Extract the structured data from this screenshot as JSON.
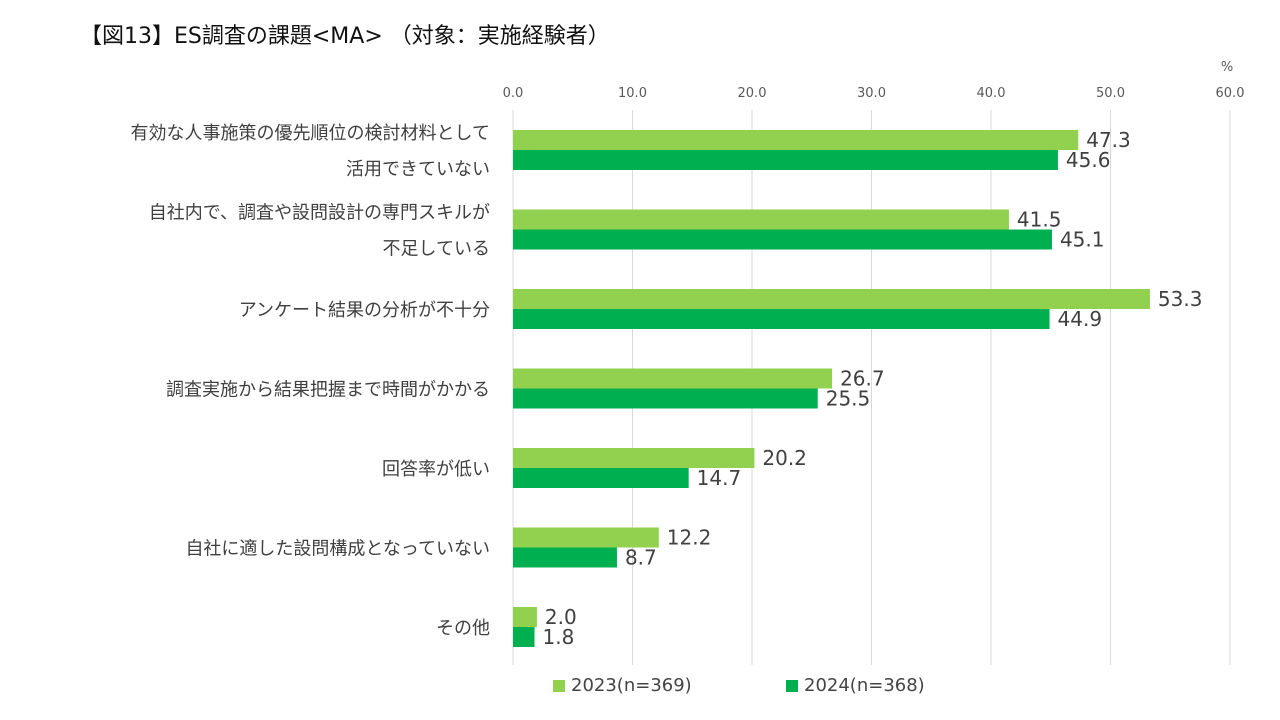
{
  "chart_data": {
    "type": "bar",
    "orientation": "horizontal",
    "title": "【図13】ES調査の課題<MA> （対象：実施経験者）",
    "unit_label": "%",
    "xlim": [
      0,
      60
    ],
    "ticks": [
      "0.0",
      "10.0",
      "20.0",
      "30.0",
      "40.0",
      "50.0",
      "60.0"
    ],
    "tick_values": [
      0,
      10,
      20,
      30,
      40,
      50,
      60
    ],
    "grid": true,
    "legend_position": "bottom",
    "categories": [
      [
        "有効な人事施策の優先順位の検討材料として",
        "活用できていない"
      ],
      [
        "自社内で、調査や設問設計の専門スキルが",
        "不足している"
      ],
      [
        "アンケート結果の分析が不十分"
      ],
      [
        "調査実施から結果把握まで時間がかかる"
      ],
      [
        "回答率が低い"
      ],
      [
        "自社に適した設問構成となっていない"
      ],
      [
        "その他"
      ]
    ],
    "series": [
      {
        "name": "2023(n=369)",
        "color": "#92d050",
        "values": [
          47.3,
          41.5,
          53.3,
          26.7,
          20.2,
          12.2,
          2.0
        ],
        "labels": [
          "47.3",
          "41.5",
          "53.3",
          "26.7",
          "20.2",
          "12.2",
          "2.0"
        ]
      },
      {
        "name": "2024(n=368)",
        "color": "#00b050",
        "values": [
          45.6,
          45.1,
          44.9,
          25.5,
          14.7,
          8.7,
          1.8
        ],
        "labels": [
          "45.6",
          "45.1",
          "44.9",
          "25.5",
          "14.7",
          "8.7",
          "1.8"
        ]
      }
    ]
  }
}
